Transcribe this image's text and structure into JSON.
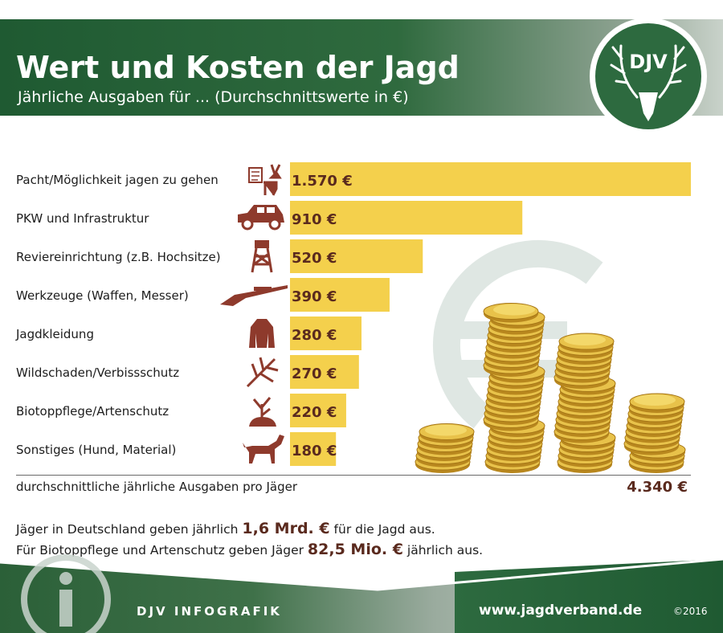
{
  "header": {
    "title": "Wert und Kosten der Jagd",
    "subtitle": "Jährliche Ausgaben für ... (Durchschnittswerte in €)",
    "logo_text": "DJV"
  },
  "chart_data": {
    "type": "bar",
    "orientation": "horizontal",
    "title": "Wert und Kosten der Jagd",
    "subtitle": "Jährliche Ausgaben für ... (Durchschnittswerte in €)",
    "unit": "€",
    "categories": [
      "Pacht/Möglichkeit jagen zu gehen",
      "PKW und Infrastruktur",
      "Reviereinrichtung (z.B. Hochsitze)",
      "Werkzeuge (Waffen, Messer)",
      "Jagdkleidung",
      "Wildschaden/Verbissschutz",
      "Biotoppflege/Artenschutz",
      "Sonstiges (Hund, Material)"
    ],
    "values": [
      1570,
      910,
      520,
      390,
      280,
      270,
      220,
      180
    ],
    "value_labels": [
      "1.570 €",
      "910 €",
      "520 €",
      "390 €",
      "280 €",
      "270 €",
      "220 €",
      "180 €"
    ],
    "icons": [
      "lease-deer-icon",
      "car-icon",
      "hunting-stand-icon",
      "rifle-icon",
      "jacket-icon",
      "plant-protection-icon",
      "tree-habitat-icon",
      "dog-icon"
    ],
    "xlim": [
      0,
      1570
    ],
    "colors": {
      "bar": "#f4d04c",
      "value": "#5a2a1e",
      "icon": "#8e3a2c"
    }
  },
  "total": {
    "label": "durchschnittliche jährliche Ausgaben pro Jäger",
    "value": "4.340 €"
  },
  "facts": [
    {
      "prefix": "Jäger in Deutschland geben jährlich",
      "amount": "1,6 Mrd. €",
      "suffix": "für die Jagd aus."
    },
    {
      "prefix": "Für Biotoppflege und Artenschutz geben Jäger",
      "amount": "82,5 Mio. €",
      "suffix": "jährlich aus."
    }
  ],
  "footer": {
    "brand": "DJV INFOGRAFIK",
    "url": "www.jagdverband.de",
    "copyright": "©2016"
  }
}
